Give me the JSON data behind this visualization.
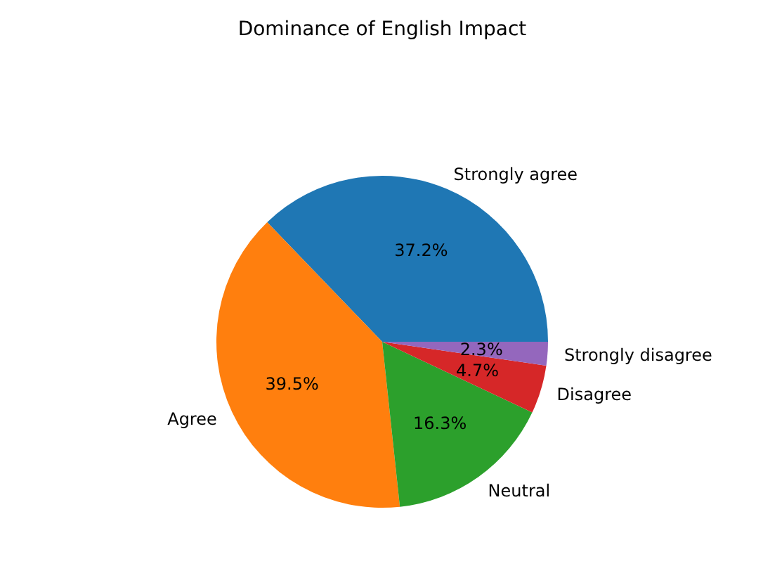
{
  "chart_data": {
    "type": "pie",
    "title": "Dominance of English Impact",
    "categories": [
      "Strongly agree",
      "Agree",
      "Neutral",
      "Disagree",
      "Strongly disagree"
    ],
    "values": [
      37.2,
      39.5,
      16.3,
      4.7,
      2.3
    ],
    "colors": [
      "#1f77b4",
      "#ff7f0e",
      "#2ca02c",
      "#d62728",
      "#9467bd"
    ],
    "value_labels": [
      "37.2%",
      "39.5%",
      "16.3%",
      "4.7%",
      "2.3%"
    ]
  }
}
